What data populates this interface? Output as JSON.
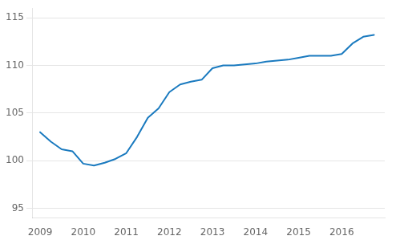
{
  "chart_data": {
    "type": "line",
    "x": [
      2009.0,
      2009.25,
      2009.5,
      2009.75,
      2010.0,
      2010.25,
      2010.5,
      2010.75,
      2011.0,
      2011.25,
      2011.5,
      2011.75,
      2012.0,
      2012.25,
      2012.5,
      2012.75,
      2013.0,
      2013.25,
      2013.5,
      2013.75,
      2014.0,
      2014.25,
      2014.5,
      2014.75,
      2015.0,
      2015.25,
      2015.5,
      2015.75,
      2016.0,
      2016.25,
      2016.5,
      2016.75
    ],
    "values": [
      103.0,
      102.0,
      101.2,
      101.0,
      99.7,
      99.5,
      99.8,
      100.2,
      100.8,
      102.5,
      104.5,
      105.5,
      107.2,
      108.0,
      108.3,
      108.5,
      109.7,
      110.0,
      110.0,
      110.1,
      110.2,
      110.4,
      110.5,
      110.6,
      110.8,
      111.0,
      111.0,
      111.0,
      111.2,
      112.3,
      113.0,
      113.2
    ],
    "color": "#1a7abf",
    "xlim": [
      2008.83,
      2017.0
    ],
    "xticks": [
      2009,
      2010,
      2011,
      2012,
      2013,
      2014,
      2015,
      2016
    ],
    "ylim": [
      94,
      116
    ],
    "yticks": [
      95,
      100,
      105,
      110,
      115
    ],
    "grid": "y"
  }
}
